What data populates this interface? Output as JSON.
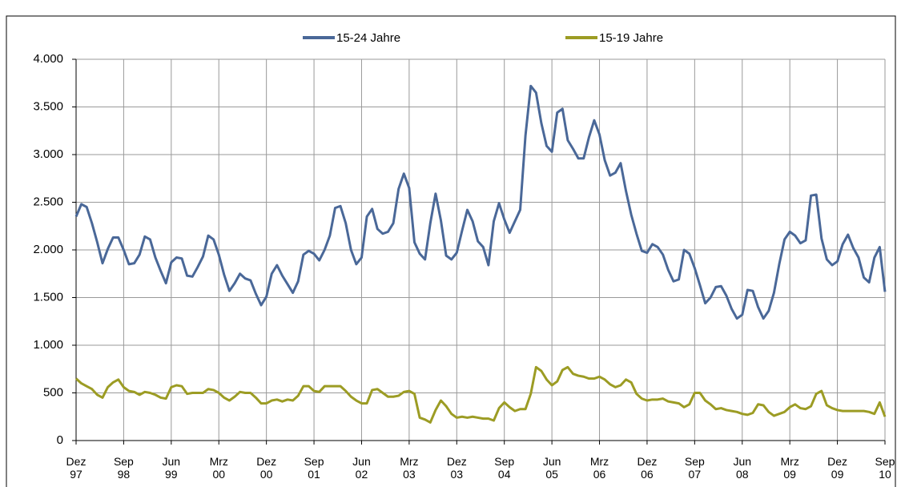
{
  "chart_data": {
    "type": "line",
    "categories": [
      "Dez 97",
      null,
      null,
      null,
      null,
      null,
      null,
      null,
      null,
      "Sep 98",
      null,
      null,
      null,
      null,
      null,
      null,
      null,
      null,
      "Jun 99",
      null,
      null,
      null,
      null,
      null,
      null,
      null,
      null,
      "Mrz 00",
      null,
      null,
      null,
      null,
      null,
      null,
      null,
      null,
      "Dez 00",
      null,
      null,
      null,
      null,
      null,
      null,
      null,
      null,
      "Sep 01",
      null,
      null,
      null,
      null,
      null,
      null,
      null,
      null,
      "Jun 02",
      null,
      null,
      null,
      null,
      null,
      null,
      null,
      null,
      "Mrz 03",
      null,
      null,
      null,
      null,
      null,
      null,
      null,
      null,
      "Dez 03",
      null,
      null,
      null,
      null,
      null,
      null,
      null,
      null,
      "Sep 04",
      null,
      null,
      null,
      null,
      null,
      null,
      null,
      null,
      "Jun 05",
      null,
      null,
      null,
      null,
      null,
      null,
      null,
      null,
      "Mrz 06",
      null,
      null,
      null,
      null,
      null,
      null,
      null,
      null,
      "Dez 06",
      null,
      null,
      null,
      null,
      null,
      null,
      null,
      null,
      "Sep 07",
      null,
      null,
      null,
      null,
      null,
      null,
      null,
      null,
      "Jun 08",
      null,
      null,
      null,
      null,
      null,
      null,
      null,
      null,
      "Mrz 09",
      null,
      null,
      null,
      null,
      null,
      null,
      null,
      null,
      "Dez 09",
      null,
      null,
      null,
      null,
      null,
      null,
      null,
      null,
      "Sep 10"
    ],
    "series": [
      {
        "name": "15-24 Jahre",
        "color": "#4a6898",
        "values": [
          2350,
          2480,
          2450,
          2280,
          2080,
          1860,
          2010,
          2130,
          2130,
          2000,
          1850,
          1860,
          1950,
          2140,
          2110,
          1920,
          1780,
          1650,
          1870,
          1920,
          1910,
          1730,
          1720,
          1820,
          1930,
          2150,
          2110,
          1950,
          1740,
          1570,
          1650,
          1750,
          1700,
          1680,
          1540,
          1420,
          1510,
          1750,
          1840,
          1730,
          1640,
          1550,
          1670,
          1950,
          1990,
          1960,
          1890,
          2000,
          2150,
          2440,
          2460,
          2280,
          2000,
          1850,
          1920,
          2350,
          2430,
          2220,
          2170,
          2190,
          2280,
          2640,
          2800,
          2650,
          2080,
          1960,
          1900,
          2280,
          2590,
          2310,
          1940,
          1900,
          1970,
          2200,
          2420,
          2300,
          2090,
          2030,
          1840,
          2300,
          2490,
          2320,
          2180,
          2300,
          2420,
          3200,
          3720,
          3650,
          3330,
          3090,
          3030,
          3440,
          3480,
          3150,
          3060,
          2960,
          2960,
          3180,
          3360,
          3210,
          2940,
          2780,
          2810,
          2910,
          2620,
          2370,
          2170,
          1990,
          1970,
          2060,
          2030,
          1950,
          1790,
          1670,
          1690,
          2000,
          1960,
          1810,
          1630,
          1440,
          1500,
          1610,
          1620,
          1520,
          1380,
          1280,
          1320,
          1580,
          1570,
          1400,
          1280,
          1360,
          1550,
          1850,
          2110,
          2190,
          2150,
          2070,
          2100,
          2570,
          2580,
          2120,
          1900,
          1840,
          1880,
          2060,
          2160,
          2020,
          1920,
          1710,
          1660,
          1920,
          2030,
          1560
        ]
      },
      {
        "name": "15-19 Jahre",
        "color": "#9c9c24",
        "values": [
          650,
          600,
          570,
          540,
          480,
          450,
          560,
          610,
          640,
          560,
          520,
          510,
          480,
          510,
          500,
          480,
          450,
          440,
          560,
          580,
          570,
          490,
          500,
          500,
          500,
          540,
          530,
          500,
          450,
          420,
          460,
          510,
          500,
          500,
          450,
          390,
          390,
          420,
          430,
          410,
          430,
          420,
          470,
          570,
          570,
          520,
          510,
          570,
          570,
          570,
          570,
          520,
          460,
          420,
          390,
          390,
          530,
          540,
          500,
          460,
          460,
          470,
          510,
          520,
          490,
          240,
          220,
          190,
          320,
          420,
          360,
          280,
          240,
          250,
          240,
          250,
          240,
          230,
          230,
          210,
          340,
          400,
          350,
          310,
          330,
          330,
          490,
          770,
          730,
          640,
          580,
          620,
          740,
          770,
          700,
          680,
          670,
          650,
          650,
          670,
          640,
          590,
          560,
          580,
          640,
          610,
          490,
          440,
          420,
          430,
          430,
          440,
          410,
          400,
          390,
          350,
          380,
          500,
          500,
          420,
          380,
          330,
          340,
          320,
          310,
          300,
          280,
          270,
          290,
          380,
          370,
          300,
          260,
          280,
          300,
          350,
          380,
          340,
          330,
          360,
          490,
          520,
          370,
          340,
          320,
          310,
          310,
          310,
          310,
          310,
          300,
          280,
          400,
          250
        ]
      }
    ],
    "ylim": [
      0,
      4000
    ],
    "yticks": [
      0,
      500,
      {
        "value": 1000,
        "label": "1.000"
      },
      {
        "value": 1500,
        "label": "1.500"
      },
      {
        "value": 2000,
        "label": "2.000"
      },
      {
        "value": 2500,
        "label": "2.500"
      },
      {
        "value": 3000,
        "label": "3.000"
      },
      {
        "value": 3500,
        "label": "3.500"
      },
      {
        "value": 4000,
        "label": "4.000"
      }
    ],
    "grid": true,
    "legend": "top"
  }
}
